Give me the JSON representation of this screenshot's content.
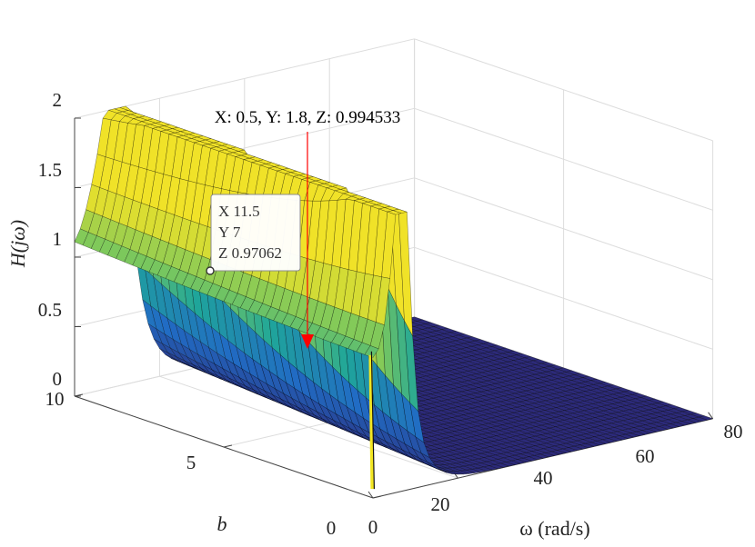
{
  "chart_data": {
    "type": "surface",
    "zlabel": "H(jω)",
    "xlabel": "ω (rad/s)",
    "ylabel": "b",
    "xlim": [
      0,
      80
    ],
    "ylim": [
      0,
      10
    ],
    "zlim": [
      0,
      2
    ],
    "xticks": [
      "0",
      "20",
      "40",
      "60",
      "80"
    ],
    "yticks": [
      "0",
      "5",
      "10"
    ],
    "zticks": [
      "0",
      "0.5",
      "1",
      "1.5",
      "2"
    ],
    "grid": true,
    "colormap": "parula",
    "colors": {
      "low": "#2c2a78",
      "mid": "#1fa69a",
      "high": "#f2e621",
      "edge": "#000000"
    },
    "annotation": {
      "text": "X: 0.5, Y: 1.8, Z: 0.994533",
      "point": {
        "x": 0.5,
        "y": 1.8,
        "z": 0.994533
      },
      "arrow_color": "#ff0000"
    },
    "datatip": {
      "x_label": "X 11.5",
      "y_label": "Y 7",
      "z_label": "Z 0.97062",
      "point": {
        "x": 11.5,
        "y": 7,
        "z": 0.97062
      }
    }
  }
}
